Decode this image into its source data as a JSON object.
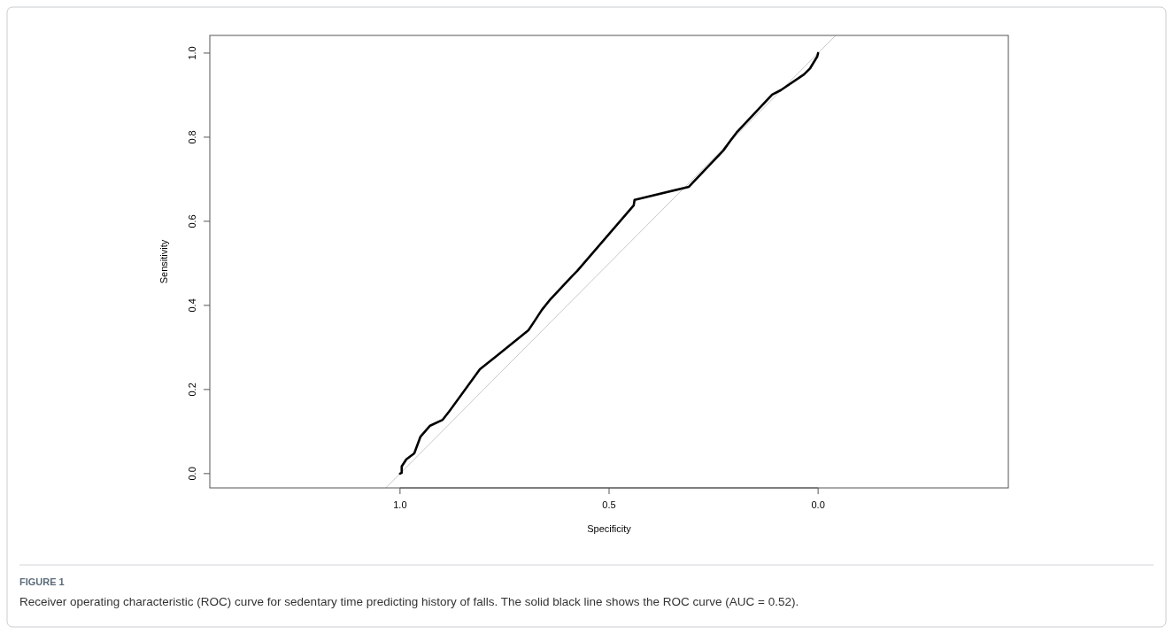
{
  "chart_data": {
    "type": "line",
    "xlabel": "Specificity",
    "ylabel": "Sensitivity",
    "xlim": [
      1.455,
      -0.455
    ],
    "xticks": [
      {
        "value": 1,
        "label": "1.0"
      },
      {
        "value": 0.5,
        "label": "0.5"
      },
      {
        "value": 0,
        "label": "0.0"
      }
    ],
    "ylim": [
      -0.034,
      1.042
    ],
    "yticks": [
      {
        "value": 0,
        "label": "0.0"
      },
      {
        "value": 0.2,
        "label": "0.2"
      },
      {
        "value": 0.4,
        "label": "0.4"
      },
      {
        "value": 0.6,
        "label": "0.6"
      },
      {
        "value": 0.8,
        "label": "0.8"
      },
      {
        "value": 1,
        "label": "1.0"
      }
    ],
    "series": [
      {
        "color": "#c8c8c8",
        "x": [
          1.034,
          -0.042
        ],
        "values": [
          -0.034,
          1.042
        ]
      },
      {
        "color": "#000000",
        "x": [
          1.0,
          0.996,
          0.996,
          0.985,
          0.966,
          0.951,
          0.928,
          0.898,
          0.883,
          0.809,
          0.771,
          0.693,
          0.68,
          0.661,
          0.64,
          0.591,
          0.576,
          0.441,
          0.439,
          0.309,
          0.297,
          0.227,
          0.208,
          0.195,
          0.11,
          0.089,
          0.034,
          0.019,
          0.002,
          0.0
        ],
        "values": [
          0.0,
          0.002,
          0.017,
          0.034,
          0.048,
          0.088,
          0.114,
          0.128,
          0.147,
          0.248,
          0.278,
          0.341,
          0.36,
          0.389,
          0.415,
          0.467,
          0.482,
          0.638,
          0.651,
          0.682,
          0.695,
          0.768,
          0.794,
          0.811,
          0.901,
          0.912,
          0.949,
          0.964,
          0.992,
          1.0
        ]
      }
    ],
    "annotations": [
      "FIGURE 1",
      "Receiver operating characteristic (ROC) curve for sedentary time predicting history of falls. The solid black line shows the ROC curve (AUC = 0.52)."
    ]
  }
}
